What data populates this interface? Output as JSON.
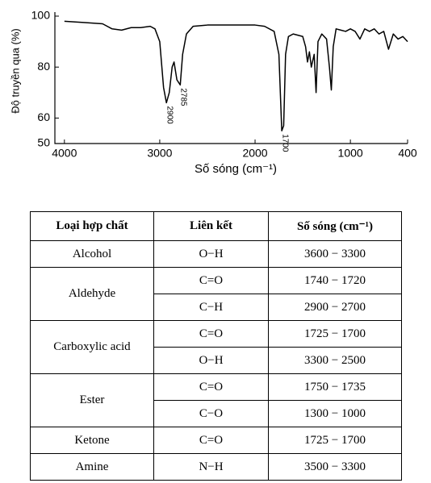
{
  "chart_data": {
    "type": "line",
    "xlabel": "Số sóng (cm⁻¹)",
    "ylabel": "Độ truyền qua (%)",
    "x": [
      4000,
      3800,
      3600,
      3500,
      3400,
      3300,
      3200,
      3100,
      3050,
      3000,
      2960,
      2930,
      2900,
      2870,
      2850,
      2820,
      2785,
      2760,
      2720,
      2650,
      2500,
      2000,
      1900,
      1800,
      1750,
      1720,
      1700,
      1680,
      1650,
      1600,
      1500,
      1470,
      1450,
      1430,
      1410,
      1380,
      1360,
      1340,
      1300,
      1250,
      1220,
      1200,
      1180,
      1150,
      1100,
      1050,
      1000,
      950,
      900,
      850,
      800,
      750,
      700,
      650,
      600,
      550,
      500,
      450,
      400
    ],
    "series": [
      {
        "color": "#000000",
        "values": [
          98,
          97.5,
          97,
          95,
          94.5,
          95.5,
          95.5,
          96,
          95,
          90,
          72,
          66,
          70,
          80,
          82,
          75,
          73,
          85,
          93,
          96,
          96.5,
          96.5,
          96,
          94,
          85,
          55,
          57,
          85,
          92,
          93,
          92,
          88,
          82,
          86,
          80,
          85,
          70,
          90,
          93,
          91,
          80,
          71,
          88,
          95,
          94.5,
          94,
          95,
          94,
          91,
          95,
          94,
          95,
          93,
          94,
          87,
          93,
          91,
          92,
          90
        ]
      }
    ],
    "xlim": [
      4100,
      400
    ],
    "ylim": [
      50,
      100
    ],
    "xticks": [
      4000,
      3000,
      2000,
      1000,
      400
    ],
    "yticks": [
      100,
      80,
      60,
      50
    ],
    "annotations": [
      {
        "text": "2900",
        "x": 2930,
        "y": 66
      },
      {
        "text": "2785",
        "x": 2785,
        "y": 73
      },
      {
        "text": "1700",
        "x": 1720,
        "y": 55
      }
    ]
  },
  "table": {
    "header": [
      "Loại hợp chất",
      "Liên kết",
      "Số sóng (cm⁻¹)"
    ],
    "groups": [
      {
        "compound": "Alcohol",
        "rows": [
          {
            "bond": "O−H",
            "range": "3600 − 3300"
          }
        ]
      },
      {
        "compound": "Aldehyde",
        "rows": [
          {
            "bond": "C=O",
            "range": "1740 − 1720"
          },
          {
            "bond": "C−H",
            "range": "2900 − 2700"
          }
        ]
      },
      {
        "compound": "Carboxylic acid",
        "rows": [
          {
            "bond": "C=O",
            "range": "1725 − 1700"
          },
          {
            "bond": "O−H",
            "range": "3300 − 2500"
          }
        ]
      },
      {
        "compound": "Ester",
        "rows": [
          {
            "bond": "C=O",
            "range": "1750 − 1735"
          },
          {
            "bond": "C−O",
            "range": "1300 − 1000"
          }
        ]
      },
      {
        "compound": "Ketone",
        "rows": [
          {
            "bond": "C=O",
            "range": "1725 − 1700"
          }
        ]
      },
      {
        "compound": "Amine",
        "rows": [
          {
            "bond": "N−H",
            "range": "3500 − 3300"
          }
        ]
      }
    ]
  }
}
